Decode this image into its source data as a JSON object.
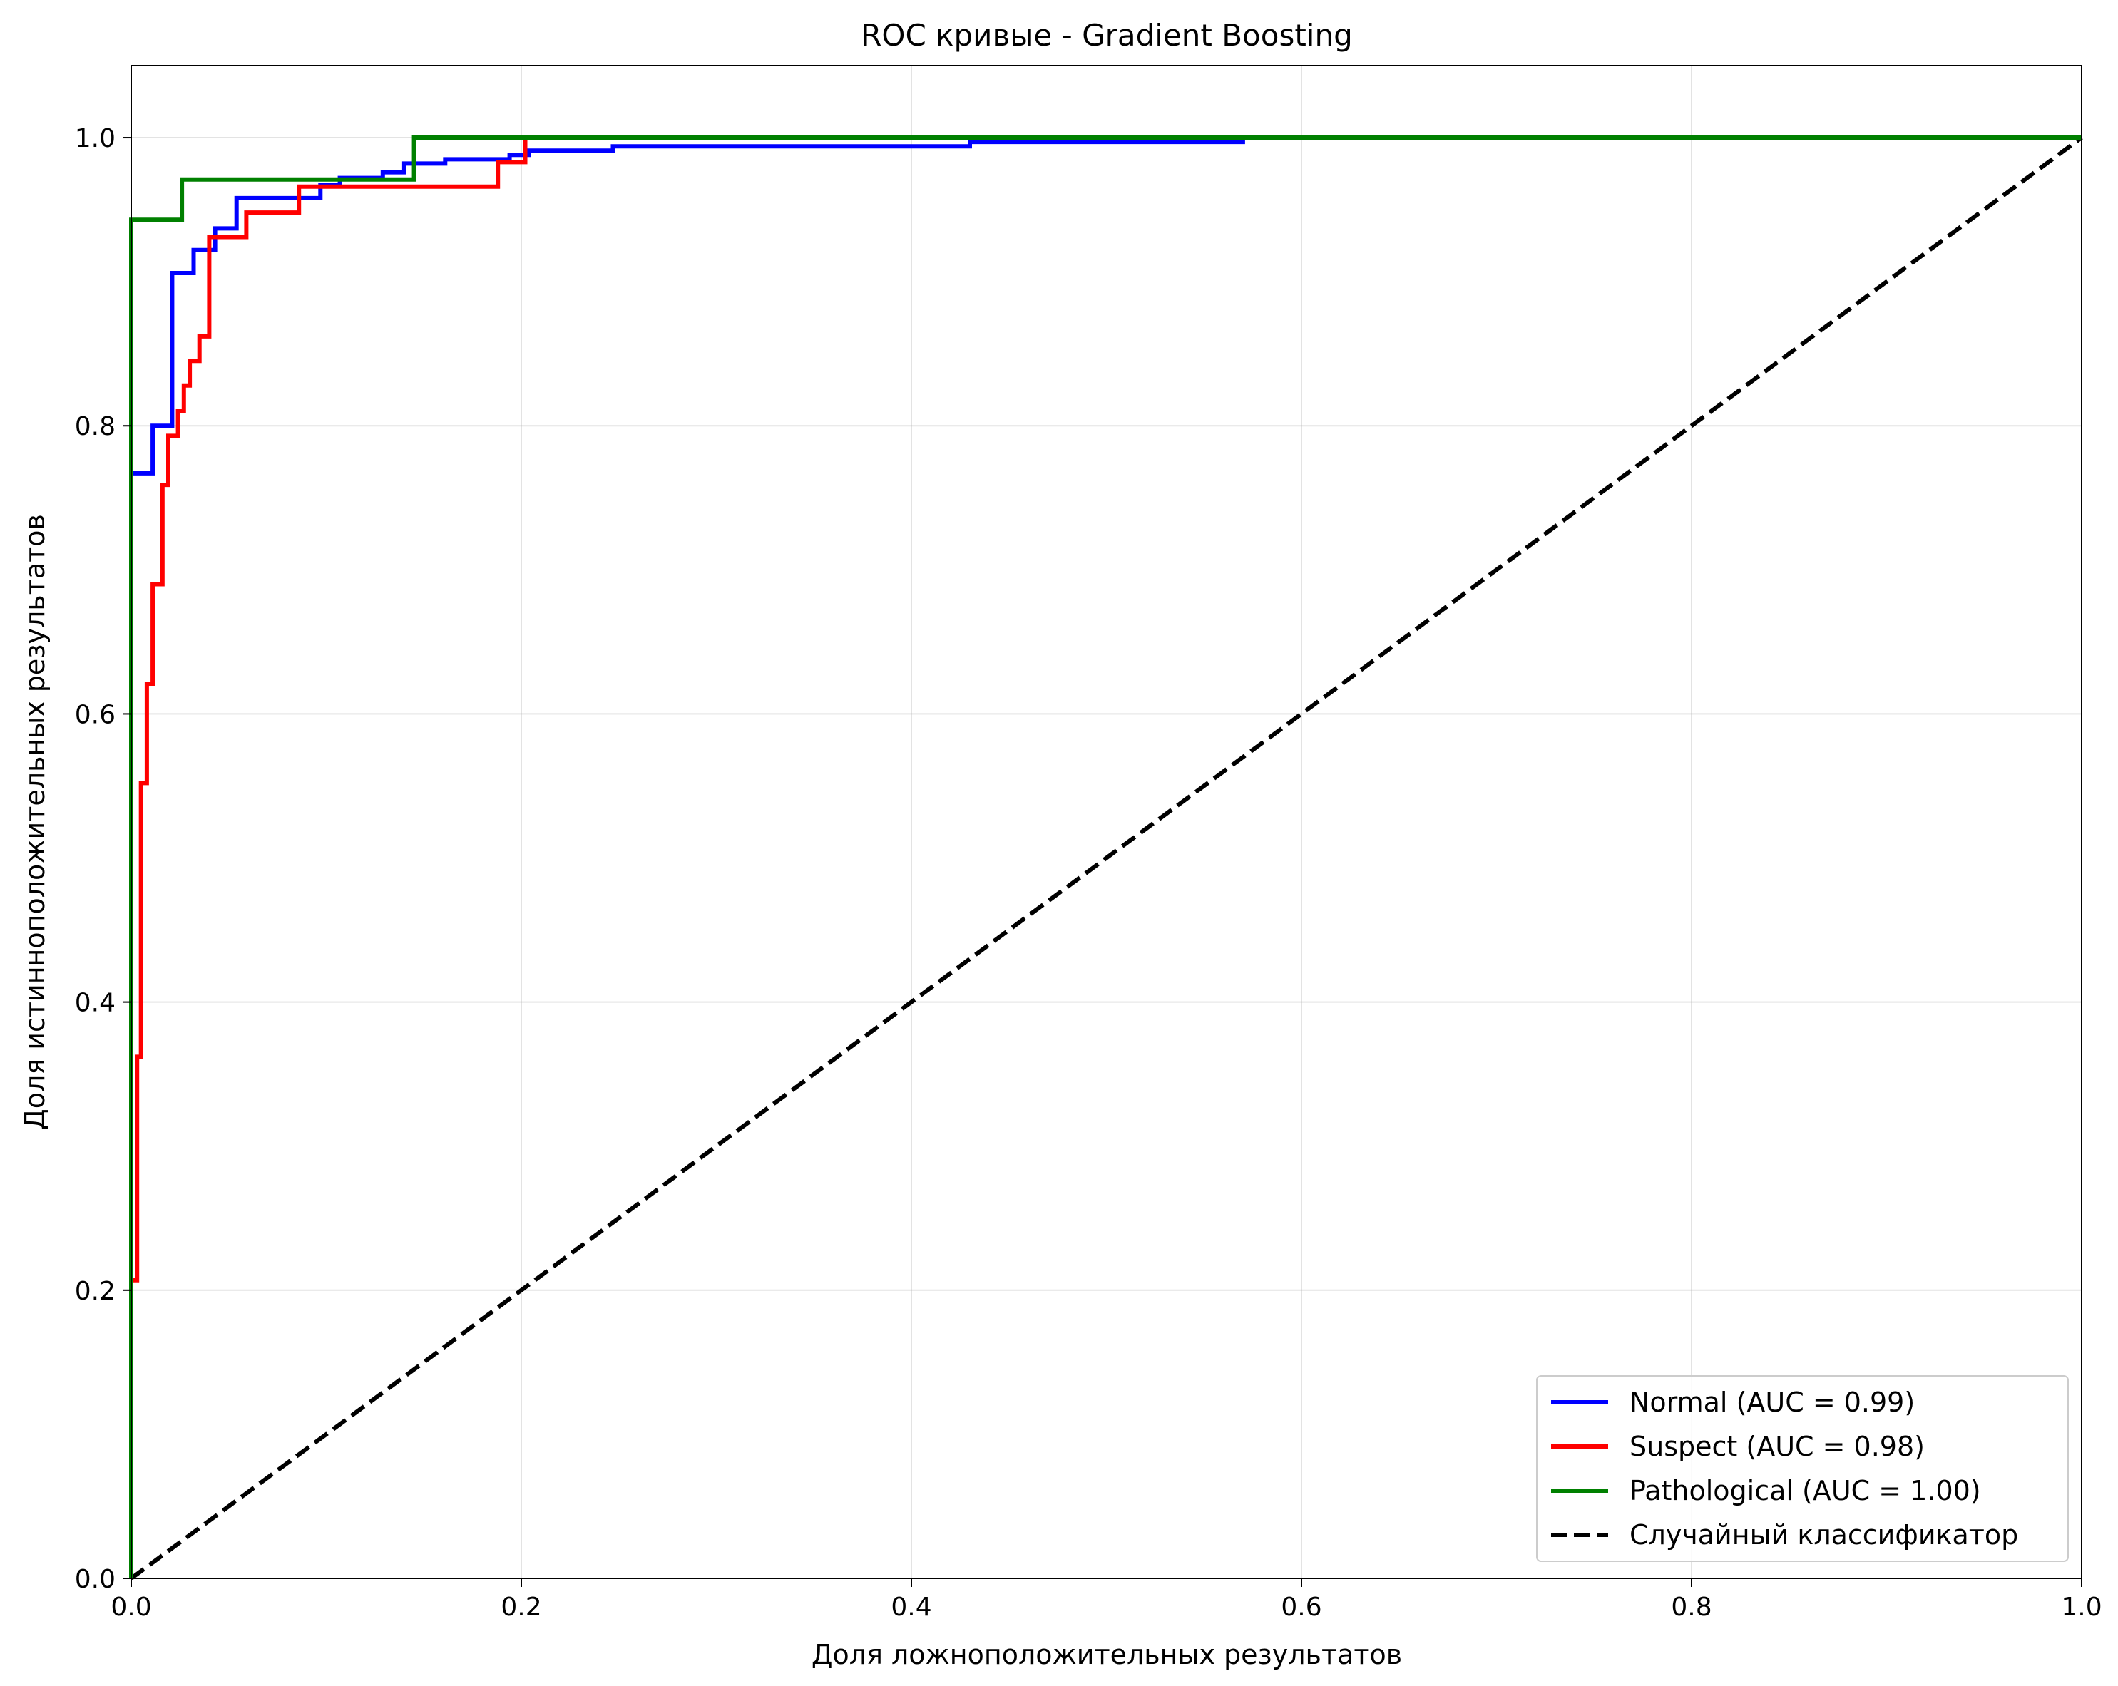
{
  "chart_data": {
    "type": "line",
    "title": "ROC кривые - Gradient Boosting",
    "xlabel": "Доля ложноположительных результатов",
    "ylabel": "Доля истинноположительных результатов",
    "xlim": [
      0.0,
      1.0
    ],
    "ylim": [
      0.0,
      1.05
    ],
    "x_ticks": [
      "0.0",
      "0.2",
      "0.4",
      "0.6",
      "0.8",
      "1.0"
    ],
    "y_ticks": [
      "0.0",
      "0.2",
      "0.4",
      "0.6",
      "0.8",
      "1.0"
    ],
    "grid": true,
    "legend_position": "lower-right",
    "series": [
      {
        "name": "Normal (AUC = 0.99)",
        "color": "#0000ff",
        "style": "solid",
        "x": [
          0.0,
          0.0,
          0.011,
          0.011,
          0.021,
          0.021,
          0.032,
          0.032,
          0.043,
          0.043,
          0.054,
          0.054,
          0.097,
          0.097,
          0.107,
          0.107,
          0.129,
          0.129,
          0.14,
          0.14,
          0.161,
          0.161,
          0.194,
          0.194,
          0.204,
          0.204,
          0.247,
          0.247,
          0.43,
          0.43,
          0.57,
          0.57,
          1.0
        ],
        "y": [
          0.0,
          0.767,
          0.767,
          0.8,
          0.8,
          0.906,
          0.906,
          0.922,
          0.922,
          0.937,
          0.937,
          0.958,
          0.958,
          0.967,
          0.967,
          0.972,
          0.972,
          0.976,
          0.976,
          0.982,
          0.982,
          0.985,
          0.985,
          0.988,
          0.988,
          0.991,
          0.991,
          0.994,
          0.994,
          0.997,
          0.997,
          1.0,
          1.0
        ]
      },
      {
        "name": "Suspect (AUC = 0.98)",
        "color": "#ff0000",
        "style": "solid",
        "x": [
          0.0,
          0.0,
          0.003,
          0.003,
          0.005,
          0.005,
          0.008,
          0.008,
          0.011,
          0.011,
          0.016,
          0.016,
          0.019,
          0.019,
          0.024,
          0.024,
          0.027,
          0.027,
          0.03,
          0.03,
          0.035,
          0.035,
          0.04,
          0.04,
          0.043,
          0.043,
          0.059,
          0.059,
          0.086,
          0.086,
          0.188,
          0.188,
          0.202,
          0.202,
          1.0
        ],
        "y": [
          0.0,
          0.207,
          0.207,
          0.362,
          0.362,
          0.552,
          0.552,
          0.621,
          0.621,
          0.69,
          0.69,
          0.759,
          0.759,
          0.793,
          0.793,
          0.81,
          0.81,
          0.828,
          0.828,
          0.845,
          0.845,
          0.862,
          0.862,
          0.931,
          0.931,
          0.931,
          0.931,
          0.948,
          0.948,
          0.966,
          0.966,
          0.983,
          0.983,
          1.0,
          1.0
        ]
      },
      {
        "name": "Pathological (AUC = 1.00)",
        "color": "#008000",
        "style": "solid",
        "x": [
          0.0,
          0.0,
          0.026,
          0.026,
          0.145,
          0.145,
          1.0
        ],
        "y": [
          0.0,
          0.943,
          0.943,
          0.971,
          0.971,
          1.0,
          1.0
        ]
      },
      {
        "name": "Случайный классификатор",
        "color": "#000000",
        "style": "dashed",
        "x": [
          0.0,
          1.0
        ],
        "y": [
          0.0,
          1.0
        ]
      }
    ]
  }
}
